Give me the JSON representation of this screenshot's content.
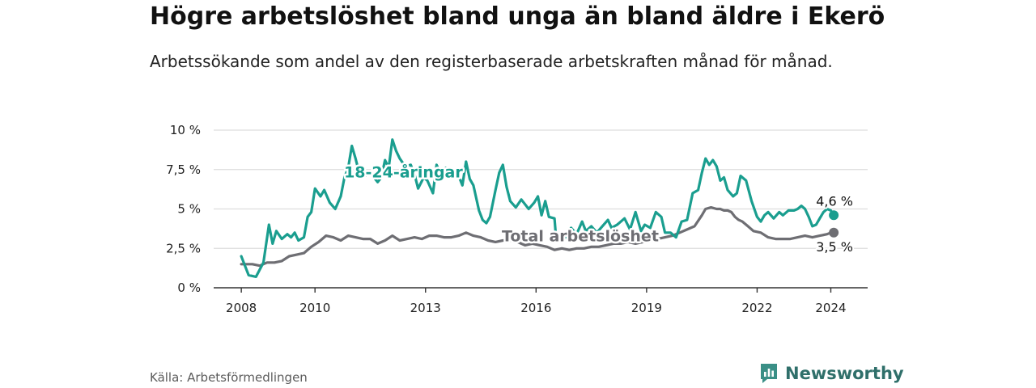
{
  "title": "Högre arbetslöshet bland unga än bland äldre i Ekerö",
  "subtitle": "Arbetssökande som andel av den registerbaserade arbetskraften månad för månad.",
  "source": "Källa: Arbetsförmedlingen",
  "brand": "Newsworthy",
  "colors": {
    "youth": "#1a9e8f",
    "total": "#6e6e73",
    "grid": "#dddddd",
    "axis": "#333333",
    "brand": "#2f6f6a"
  },
  "chart_data": {
    "type": "line",
    "title": "Högre arbetslöshet bland unga än bland äldre i Ekerö",
    "xlabel": "",
    "ylabel": "",
    "xlim": [
      2007.25,
      2025.0
    ],
    "ylim": [
      0,
      10
    ],
    "grid": true,
    "y_ticks": [
      0,
      2.5,
      5,
      7.5,
      10
    ],
    "y_tick_labels": [
      "0 %",
      "2,5 %",
      "5 %",
      "7,5 %",
      "10 %"
    ],
    "x_ticks": [
      2008,
      2010,
      2013,
      2016,
      2019,
      2022,
      2024
    ],
    "x_tick_labels": [
      "2008",
      "2010",
      "2013",
      "2016",
      "2019",
      "2022",
      "2024"
    ],
    "series": [
      {
        "name": "18-24-åringar",
        "label": "18-24-åringar",
        "label_position": [
          2012.4,
          7.0
        ],
        "end_label": "4,6 %",
        "color": "#1a9e8f",
        "points": [
          [
            2008.0,
            2.0
          ],
          [
            2008.2,
            0.8
          ],
          [
            2008.4,
            0.7
          ],
          [
            2008.6,
            1.6
          ],
          [
            2008.75,
            4.0
          ],
          [
            2008.85,
            2.8
          ],
          [
            2008.95,
            3.6
          ],
          [
            2009.1,
            3.1
          ],
          [
            2009.25,
            3.4
          ],
          [
            2009.35,
            3.2
          ],
          [
            2009.45,
            3.5
          ],
          [
            2009.55,
            3.0
          ],
          [
            2009.7,
            3.2
          ],
          [
            2009.8,
            4.5
          ],
          [
            2009.9,
            4.8
          ],
          [
            2010.0,
            6.3
          ],
          [
            2010.15,
            5.8
          ],
          [
            2010.25,
            6.2
          ],
          [
            2010.4,
            5.4
          ],
          [
            2010.55,
            5.0
          ],
          [
            2010.7,
            5.8
          ],
          [
            2010.8,
            7.0
          ],
          [
            2010.9,
            7.6
          ],
          [
            2011.0,
            9.0
          ],
          [
            2011.1,
            8.2
          ],
          [
            2011.2,
            7.3
          ],
          [
            2011.35,
            7.1
          ],
          [
            2011.5,
            7.3
          ],
          [
            2011.7,
            6.7
          ],
          [
            2011.8,
            7.0
          ],
          [
            2011.9,
            8.1
          ],
          [
            2012.0,
            7.6
          ],
          [
            2012.1,
            9.4
          ],
          [
            2012.2,
            8.7
          ],
          [
            2012.3,
            8.2
          ],
          [
            2012.45,
            7.7
          ],
          [
            2012.6,
            7.8
          ],
          [
            2012.7,
            7.2
          ],
          [
            2012.8,
            6.3
          ],
          [
            2012.95,
            7.0
          ],
          [
            2013.05,
            6.8
          ],
          [
            2013.2,
            6.0
          ],
          [
            2013.3,
            7.8
          ],
          [
            2013.4,
            7.3
          ],
          [
            2013.55,
            7.6
          ],
          [
            2013.7,
            7.2
          ],
          [
            2013.85,
            7.4
          ],
          [
            2014.0,
            6.5
          ],
          [
            2014.1,
            8.0
          ],
          [
            2014.2,
            6.9
          ],
          [
            2014.3,
            6.5
          ],
          [
            2014.45,
            4.9
          ],
          [
            2014.55,
            4.3
          ],
          [
            2014.65,
            4.1
          ],
          [
            2014.75,
            4.5
          ],
          [
            2014.9,
            6.2
          ],
          [
            2015.0,
            7.3
          ],
          [
            2015.1,
            7.8
          ],
          [
            2015.2,
            6.4
          ],
          [
            2015.3,
            5.5
          ],
          [
            2015.45,
            5.1
          ],
          [
            2015.6,
            5.6
          ],
          [
            2015.8,
            5.0
          ],
          [
            2015.95,
            5.4
          ],
          [
            2016.05,
            5.8
          ],
          [
            2016.15,
            4.6
          ],
          [
            2016.25,
            5.5
          ],
          [
            2016.35,
            4.5
          ],
          [
            2016.5,
            4.4
          ],
          [
            2016.55,
            3.0
          ],
          [
            2016.65,
            3.5
          ],
          [
            2016.8,
            3.2
          ],
          [
            2016.95,
            3.8
          ],
          [
            2017.1,
            3.4
          ],
          [
            2017.25,
            4.2
          ],
          [
            2017.35,
            3.6
          ],
          [
            2017.5,
            3.9
          ],
          [
            2017.65,
            3.5
          ],
          [
            2017.8,
            3.9
          ],
          [
            2017.95,
            4.3
          ],
          [
            2018.05,
            3.8
          ],
          [
            2018.2,
            4.0
          ],
          [
            2018.4,
            4.4
          ],
          [
            2018.55,
            3.7
          ],
          [
            2018.7,
            4.8
          ],
          [
            2018.85,
            3.6
          ],
          [
            2018.95,
            4.0
          ],
          [
            2019.1,
            3.8
          ],
          [
            2019.25,
            4.8
          ],
          [
            2019.4,
            4.5
          ],
          [
            2019.5,
            3.5
          ],
          [
            2019.65,
            3.5
          ],
          [
            2019.8,
            3.2
          ],
          [
            2019.95,
            4.2
          ],
          [
            2020.1,
            4.3
          ],
          [
            2020.25,
            6.0
          ],
          [
            2020.4,
            6.2
          ],
          [
            2020.5,
            7.3
          ],
          [
            2020.6,
            8.2
          ],
          [
            2020.7,
            7.8
          ],
          [
            2020.8,
            8.1
          ],
          [
            2020.9,
            7.7
          ],
          [
            2021.0,
            6.8
          ],
          [
            2021.1,
            7.0
          ],
          [
            2021.2,
            6.2
          ],
          [
            2021.35,
            5.8
          ],
          [
            2021.45,
            6.0
          ],
          [
            2021.55,
            7.1
          ],
          [
            2021.7,
            6.8
          ],
          [
            2021.85,
            5.5
          ],
          [
            2022.0,
            4.5
          ],
          [
            2022.1,
            4.2
          ],
          [
            2022.2,
            4.6
          ],
          [
            2022.3,
            4.8
          ],
          [
            2022.45,
            4.4
          ],
          [
            2022.6,
            4.8
          ],
          [
            2022.7,
            4.6
          ],
          [
            2022.85,
            4.9
          ],
          [
            2023.0,
            4.9
          ],
          [
            2023.1,
            5.0
          ],
          [
            2023.2,
            5.2
          ],
          [
            2023.3,
            5.0
          ],
          [
            2023.4,
            4.5
          ],
          [
            2023.5,
            3.9
          ],
          [
            2023.6,
            4.0
          ],
          [
            2023.7,
            4.4
          ],
          [
            2023.8,
            4.8
          ],
          [
            2023.9,
            5.0
          ],
          [
            2024.0,
            4.9
          ],
          [
            2024.08,
            4.6
          ]
        ]
      },
      {
        "name": "Total arbetslöshet",
        "label": "Total arbetslöshet",
        "label_position": [
          2017.2,
          2.95
        ],
        "end_label": "3,5 %",
        "color": "#6e6e73",
        "points": [
          [
            2008.0,
            1.5
          ],
          [
            2008.3,
            1.5
          ],
          [
            2008.5,
            1.4
          ],
          [
            2008.7,
            1.6
          ],
          [
            2008.9,
            1.6
          ],
          [
            2009.1,
            1.7
          ],
          [
            2009.3,
            2.0
          ],
          [
            2009.5,
            2.1
          ],
          [
            2009.7,
            2.2
          ],
          [
            2009.9,
            2.6
          ],
          [
            2010.1,
            2.9
          ],
          [
            2010.3,
            3.3
          ],
          [
            2010.5,
            3.2
          ],
          [
            2010.7,
            3.0
          ],
          [
            2010.9,
            3.3
          ],
          [
            2011.1,
            3.2
          ],
          [
            2011.3,
            3.1
          ],
          [
            2011.5,
            3.1
          ],
          [
            2011.7,
            2.8
          ],
          [
            2011.9,
            3.0
          ],
          [
            2012.1,
            3.3
          ],
          [
            2012.3,
            3.0
          ],
          [
            2012.5,
            3.1
          ],
          [
            2012.7,
            3.2
          ],
          [
            2012.9,
            3.1
          ],
          [
            2013.1,
            3.3
          ],
          [
            2013.3,
            3.3
          ],
          [
            2013.5,
            3.2
          ],
          [
            2013.7,
            3.2
          ],
          [
            2013.9,
            3.3
          ],
          [
            2014.1,
            3.5
          ],
          [
            2014.3,
            3.3
          ],
          [
            2014.5,
            3.2
          ],
          [
            2014.7,
            3.0
          ],
          [
            2014.9,
            2.9
          ],
          [
            2015.1,
            3.0
          ],
          [
            2015.3,
            3.0
          ],
          [
            2015.5,
            2.9
          ],
          [
            2015.7,
            2.7
          ],
          [
            2015.9,
            2.8
          ],
          [
            2016.1,
            2.7
          ],
          [
            2016.3,
            2.6
          ],
          [
            2016.5,
            2.4
          ],
          [
            2016.7,
            2.5
          ],
          [
            2016.9,
            2.4
          ],
          [
            2017.1,
            2.5
          ],
          [
            2017.3,
            2.5
          ],
          [
            2017.5,
            2.6
          ],
          [
            2017.7,
            2.6
          ],
          [
            2017.9,
            2.7
          ],
          [
            2018.1,
            2.8
          ],
          [
            2018.3,
            2.8
          ],
          [
            2018.5,
            2.9
          ],
          [
            2018.7,
            2.8
          ],
          [
            2018.9,
            2.9
          ],
          [
            2019.1,
            3.0
          ],
          [
            2019.3,
            3.1
          ],
          [
            2019.5,
            3.2
          ],
          [
            2019.7,
            3.3
          ],
          [
            2019.9,
            3.5
          ],
          [
            2020.1,
            3.7
          ],
          [
            2020.3,
            3.9
          ],
          [
            2020.5,
            4.6
          ],
          [
            2020.6,
            5.0
          ],
          [
            2020.75,
            5.1
          ],
          [
            2020.9,
            5.0
          ],
          [
            2021.0,
            5.0
          ],
          [
            2021.1,
            4.9
          ],
          [
            2021.2,
            4.9
          ],
          [
            2021.3,
            4.8
          ],
          [
            2021.4,
            4.5
          ],
          [
            2021.5,
            4.3
          ],
          [
            2021.6,
            4.2
          ],
          [
            2021.75,
            3.9
          ],
          [
            2021.9,
            3.6
          ],
          [
            2022.1,
            3.5
          ],
          [
            2022.3,
            3.2
          ],
          [
            2022.5,
            3.1
          ],
          [
            2022.7,
            3.1
          ],
          [
            2022.9,
            3.1
          ],
          [
            2023.1,
            3.2
          ],
          [
            2023.3,
            3.3
          ],
          [
            2023.5,
            3.2
          ],
          [
            2023.7,
            3.3
          ],
          [
            2023.9,
            3.4
          ],
          [
            2024.0,
            3.5
          ],
          [
            2024.08,
            3.5
          ]
        ]
      }
    ]
  }
}
